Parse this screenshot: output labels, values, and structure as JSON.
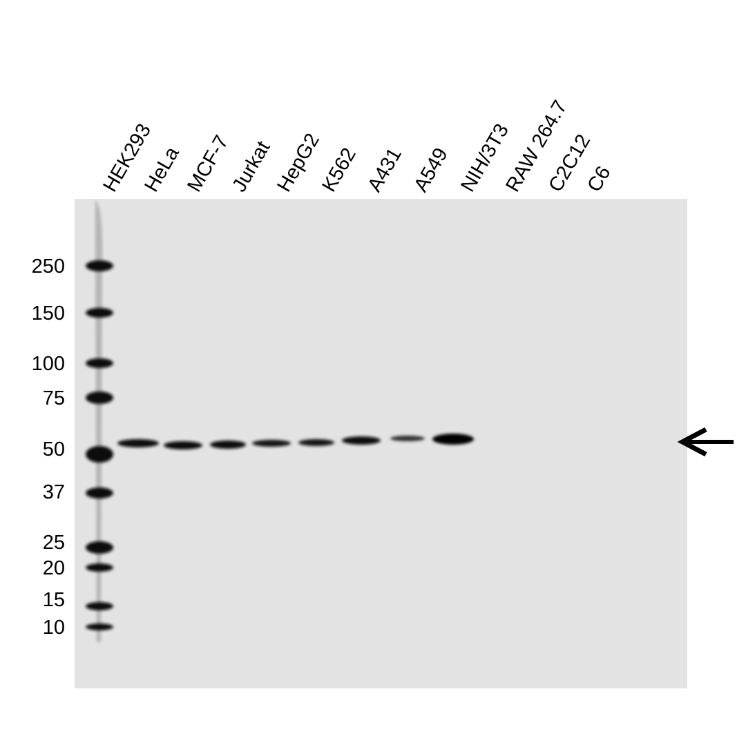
{
  "lanes": [
    "HEK293",
    "HeLa",
    "MCF-7",
    "Jurkat",
    "HepG2",
    "K562",
    "A431",
    "A549",
    "NIH/3T3",
    "RAW 264.7",
    "C2C12",
    "C6"
  ],
  "markers": [
    "250",
    "150",
    "100",
    "75",
    "50",
    "37",
    "25",
    "20",
    "15",
    "10"
  ]
}
